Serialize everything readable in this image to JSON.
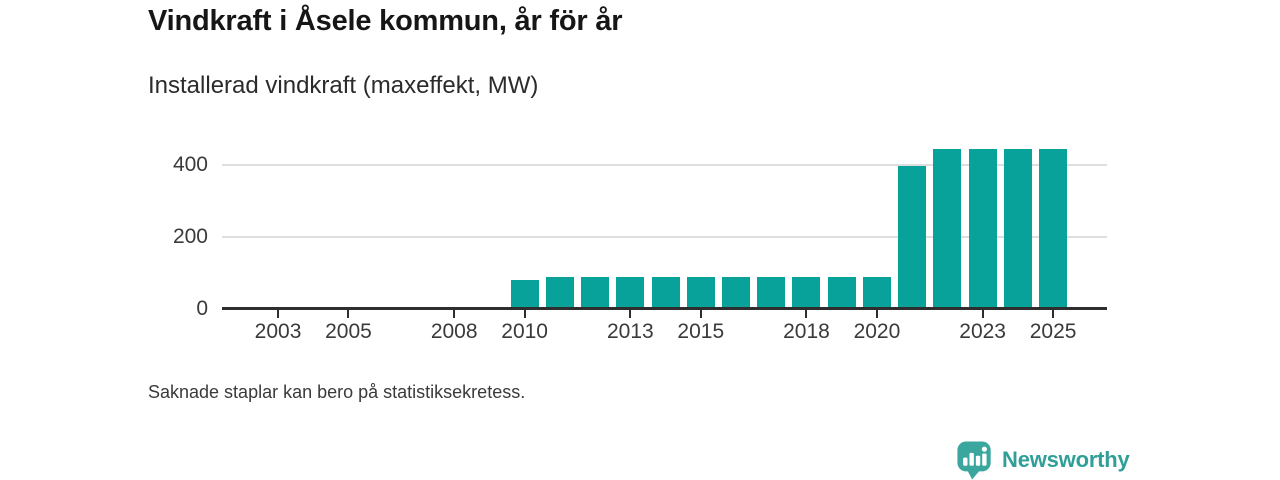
{
  "header": {
    "title": "Vindkraft i Åsele kommun, år för år",
    "subtitle": "Installerad vindkraft (maxeffekt, MW)"
  },
  "chart_data": {
    "type": "bar",
    "title": "Vindkraft i Åsele kommun, år för år",
    "subtitle": "Installerad vindkraft (maxeffekt, MW)",
    "xlabel": "",
    "ylabel": "Installerad vindkraft (maxeffekt, MW)",
    "categories": [
      2002,
      2003,
      2004,
      2005,
      2006,
      2007,
      2008,
      2009,
      2010,
      2011,
      2012,
      2013,
      2014,
      2015,
      2016,
      2017,
      2018,
      2019,
      2020,
      2021,
      2022,
      2023,
      2024,
      2025
    ],
    "values": [
      null,
      null,
      null,
      null,
      null,
      null,
      null,
      null,
      80,
      88,
      88,
      88,
      88,
      88,
      88,
      90,
      90,
      90,
      90,
      398,
      445,
      445,
      445,
      445
    ],
    "ylim": [
      0,
      460
    ],
    "yticks": [
      0,
      200,
      400
    ],
    "xticks": [
      2003,
      2005,
      2008,
      2010,
      2013,
      2015,
      2018,
      2020,
      2023,
      2025
    ],
    "grid": "horizontal",
    "legend": "none",
    "bar_color": "#08a29a",
    "note": "Missing bars before 2010; values in MW"
  },
  "footer": {
    "note": "Saknade staplar kan bero på statistiksekretess."
  },
  "brand": {
    "name": "Newsworthy",
    "icon": "newsworthy-speech-bubble-bar-chart-icon",
    "color": "#3ba69e"
  }
}
